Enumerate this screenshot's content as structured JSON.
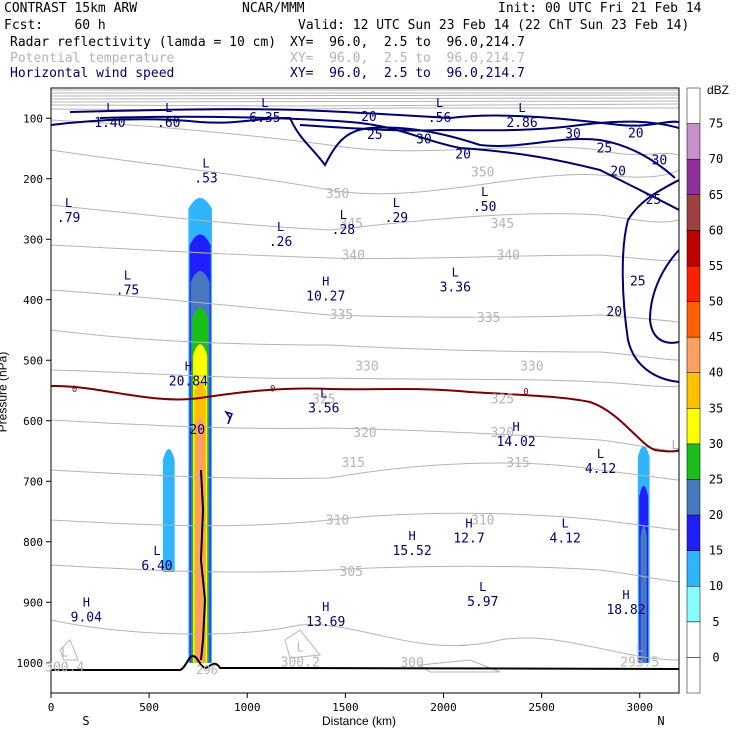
{
  "header": {
    "model": "CONTRAST 15km ARW",
    "center": "NCAR/MMM",
    "init": "Init: 00 UTC Fri 21 Feb 14",
    "fcst": "Fcst:    60 h",
    "valid": "Valid: 12 UTC Sun 23 Feb 14 (22 ChT Sun 23 Feb 14)",
    "fields": [
      {
        "name": "Radar reflectivity (lamda = 10 cm)",
        "xy": "XY=  96.0,  2.5 to  96.0,214.7",
        "color": "#000000"
      },
      {
        "name": "Potential temperature",
        "xy": "XY=  96.0,  2.5 to  96.0,214.7",
        "color": "#b4b4b4"
      },
      {
        "name": "Horizontal wind speed",
        "xy": "XY=  96.0,  2.5 to  96.0,214.7",
        "color": "#00006e"
      }
    ]
  },
  "chart_data": {
    "type": "heatmap",
    "title": "CONTRAST 15km ARW cross section",
    "xlabel": "Distance (km)",
    "ylabel": "Pressure (hPa)",
    "xlim": [
      0,
      3200
    ],
    "ylim": [
      1050,
      50
    ],
    "x_ticks": [
      "0",
      "500",
      "1000",
      "1500",
      "2000",
      "2500",
      "3000"
    ],
    "y_ticks": [
      "100",
      "200",
      "300",
      "400",
      "500",
      "600",
      "700",
      "800",
      "900",
      "1000"
    ],
    "end_labels": {
      "left": "S",
      "right": "N"
    },
    "colorbar": {
      "unit": "dBZ",
      "levels": [
        "0",
        "5",
        "10",
        "15",
        "20",
        "25",
        "30",
        "35",
        "40",
        "45",
        "50",
        "55",
        "60",
        "65",
        "70",
        "75"
      ],
      "colors": [
        "#ffffff",
        "#ffffff",
        "#88ffff",
        "#30b4ff",
        "#2020ff",
        "#4878c0",
        "#18c018",
        "#ffff00",
        "#ffc000",
        "#ffa060",
        "#ff6000",
        "#ff2000",
        "#c00000",
        "#a04040",
        "#9030a0",
        "#c890c8",
        "#ffffff"
      ]
    },
    "reflectivity_cores": [
      {
        "x_center": 760,
        "p_top": 230,
        "p_bottom": 1000,
        "max_dbz": 40
      },
      {
        "x_center": 3020,
        "p_top": 640,
        "p_bottom": 1000,
        "max_dbz": 20
      },
      {
        "x_center": 600,
        "p_top": 645,
        "p_bottom": 850,
        "max_dbz": 10
      }
    ],
    "wind_speed_labels": [
      {
        "text": "20",
        "x": 1620,
        "p": 98
      },
      {
        "text": "25",
        "x": 1650,
        "p": 128
      },
      {
        "text": "30",
        "x": 1900,
        "p": 135
      },
      {
        "text": "20",
        "x": 2100,
        "p": 160
      },
      {
        "text": "30",
        "x": 2660,
        "p": 126
      },
      {
        "text": "20",
        "x": 2980,
        "p": 125
      },
      {
        "text": "25",
        "x": 2820,
        "p": 150
      },
      {
        "text": "30",
        "x": 3100,
        "p": 170
      },
      {
        "text": "20",
        "x": 2890,
        "p": 188
      },
      {
        "text": "25",
        "x": 3070,
        "p": 235
      },
      {
        "text": "25",
        "x": 2990,
        "p": 370
      },
      {
        "text": "20",
        "x": 2870,
        "p": 420
      },
      {
        "text": "20",
        "x": 745,
        "p": 615
      }
    ],
    "theta_labels": [
      {
        "text": "350",
        "x": 1460,
        "p": 225
      },
      {
        "text": "345",
        "x": 1530,
        "p": 275
      },
      {
        "text": "340",
        "x": 1540,
        "p": 327
      },
      {
        "text": "335",
        "x": 1480,
        "p": 425
      },
      {
        "text": "330",
        "x": 1610,
        "p": 510
      },
      {
        "text": "325",
        "x": 1390,
        "p": 565
      },
      {
        "text": "320",
        "x": 1600,
        "p": 620
      },
      {
        "text": "315",
        "x": 1540,
        "p": 670
      },
      {
        "text": "310",
        "x": 1460,
        "p": 765
      },
      {
        "text": "305",
        "x": 1530,
        "p": 850
      },
      {
        "text": "300",
        "x": 1840,
        "p": 1000
      },
      {
        "text": "350",
        "x": 2200,
        "p": 190
      },
      {
        "text": "345",
        "x": 2300,
        "p": 275
      },
      {
        "text": "340",
        "x": 2330,
        "p": 327
      },
      {
        "text": "335",
        "x": 2230,
        "p": 430
      },
      {
        "text": "330",
        "x": 2450,
        "p": 510
      },
      {
        "text": "325",
        "x": 2300,
        "p": 565
      },
      {
        "text": "320",
        "x": 2300,
        "p": 620
      },
      {
        "text": "315",
        "x": 2380,
        "p": 670
      },
      {
        "text": "310",
        "x": 2200,
        "p": 765
      }
    ],
    "freezing_level_label": "0",
    "extrema": [
      {
        "type": "L",
        "value": "1.40",
        "x": 300,
        "p": 93
      },
      {
        "type": "L",
        "value": ".60",
        "x": 600,
        "p": 93
      },
      {
        "type": "L",
        "value": ".56",
        "x": 1980,
        "p": 85
      },
      {
        "type": "L",
        "value": "2.86",
        "x": 2400,
        "p": 93
      },
      {
        "type": "L",
        "value": ".53",
        "x": 790,
        "p": 185
      },
      {
        "type": "L",
        "value": ".79",
        "x": 90,
        "p": 250
      },
      {
        "type": "L",
        "value": ".28",
        "x": 1490,
        "p": 270
      },
      {
        "type": "L",
        "value": ".29",
        "x": 1760,
        "p": 250
      },
      {
        "type": "L",
        "value": ".50",
        "x": 2210,
        "p": 232
      },
      {
        "type": "L",
        "value": ".26",
        "x": 1170,
        "p": 290
      },
      {
        "type": "L",
        "value": ".75",
        "x": 390,
        "p": 370
      },
      {
        "type": "H",
        "value": "10.27",
        "x": 1400,
        "p": 380
      },
      {
        "type": "L",
        "value": "3.36",
        "x": 2060,
        "p": 365
      },
      {
        "type": "H",
        "value": "20.84",
        "x": 700,
        "p": 520
      },
      {
        "type": "L",
        "value": "3.56",
        "x": 1390,
        "p": 565
      },
      {
        "type": "H",
        "value": "14.02",
        "x": 2370,
        "p": 620
      },
      {
        "type": "L",
        "value": "4.12",
        "x": 2800,
        "p": 665
      },
      {
        "type": "H",
        "value": "12.7",
        "x": 2130,
        "p": 780
      },
      {
        "type": "L",
        "value": "4.12",
        "x": 2620,
        "p": 780
      },
      {
        "type": "H",
        "value": "15.52",
        "x": 1840,
        "p": 800
      },
      {
        "type": "L",
        "value": "6.40",
        "x": 540,
        "p": 825
      },
      {
        "type": "L",
        "value": "5.97",
        "x": 2200,
        "p": 885
      },
      {
        "type": "H",
        "value": "18.82",
        "x": 2930,
        "p": 898
      },
      {
        "type": "H",
        "value": "9.04",
        "x": 180,
        "p": 910
      },
      {
        "type": "H",
        "value": "13.69",
        "x": 1400,
        "p": 918
      },
      {
        "type": "L",
        "value": "300.4",
        "x": 70,
        "p": 993
      },
      {
        "type": "L",
        "value": "300.2",
        "x": 1270,
        "p": 985
      },
      {
        "type": "L",
        "value": "295.5",
        "x": 3000,
        "p": 985
      },
      {
        "type": "L",
        "value": "6.35",
        "x": 1090,
        "p": 85
      }
    ],
    "lone_labels": [
      {
        "text": "296",
        "x": 795,
        "p": 1012
      },
      {
        "text": "L",
        "x": 3180,
        "p": 640
      }
    ]
  }
}
